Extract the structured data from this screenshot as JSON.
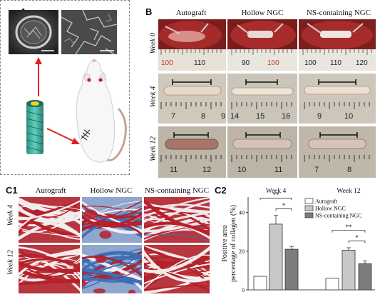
{
  "panels": {
    "A": "A",
    "B": "B",
    "C1": "C1",
    "C2": "C2"
  },
  "B": {
    "columns": [
      "Autograft",
      "Hollow NGC",
      "NS-containing NGC"
    ],
    "rows": [
      "Week 0",
      "Week 4",
      "Week 12"
    ],
    "ruler_numbers": {
      "week0": [
        [
          "100",
          "110"
        ],
        [
          "90",
          "100"
        ],
        [
          "100",
          "110",
          "120"
        ]
      ],
      "week4": [
        [
          "7",
          "8",
          "9"
        ],
        [
          "14",
          "15",
          "16"
        ],
        [
          "9",
          "10"
        ]
      ],
      "week12": [
        [
          "11",
          "12"
        ],
        [
          "10",
          "11"
        ],
        [
          "7",
          "8"
        ]
      ]
    }
  },
  "C1": {
    "columns": [
      "Autograft",
      "Hollow NGC",
      "NS-containing NGC"
    ],
    "rows": [
      "Week 4",
      "Week 12"
    ]
  },
  "colors": {
    "autograft": "#ffffff",
    "hollow": "#c8c8c8",
    "ns": "#7d7d7d",
    "masson_red": "#b5202a",
    "masson_blue": "#3d6fb8"
  },
  "chart_data": {
    "type": "bar",
    "groups": [
      "Week 4",
      "Week 12"
    ],
    "series": [
      {
        "name": "Autograft",
        "values": [
          7,
          6
        ]
      },
      {
        "name": "Hollow NGC",
        "values": [
          34,
          20.5
        ]
      },
      {
        "name": "NS-containing NGC",
        "values": [
          21,
          13.5
        ]
      }
    ],
    "errors": [
      [
        0,
        0
      ],
      [
        4.5,
        1.3
      ],
      [
        1.5,
        1.5
      ]
    ],
    "significance": [
      {
        "group": "Week 4",
        "from": "Autograft",
        "to": "NS-containing NGC",
        "label": "**"
      },
      {
        "group": "Week 4",
        "from": "Hollow NGC",
        "to": "NS-containing NGC",
        "label": "*"
      },
      {
        "group": "Week 12",
        "from": "Autograft",
        "to": "NS-containing NGC",
        "label": "**"
      },
      {
        "group": "Week 12",
        "from": "Hollow NGC",
        "to": "NS-containing NGC",
        "label": "*"
      }
    ],
    "ylabel": "Positive area percentage of collagen (%)",
    "ylabel_line1": "Positive area",
    "ylabel_line2": "percentage of collagen (%)",
    "yticks": [
      "0",
      "20",
      "40"
    ],
    "ylim": [
      0,
      48
    ],
    "legend": [
      "Autograft",
      "Hollow NGC",
      "NS-containing NGC"
    ],
    "legend_position": "top-right"
  }
}
